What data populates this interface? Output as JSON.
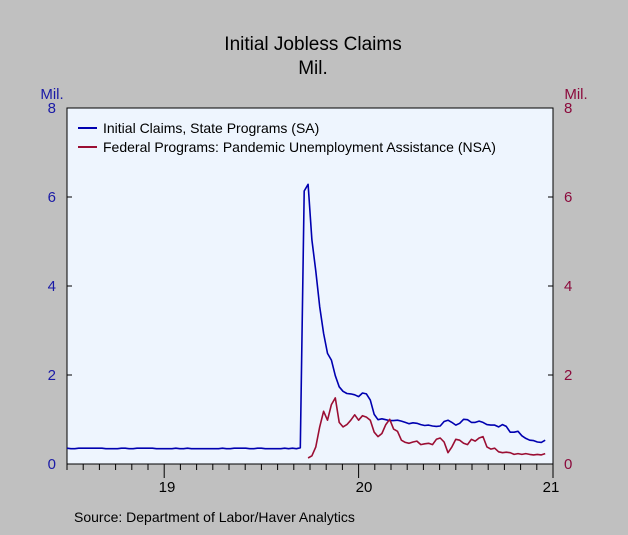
{
  "chart_data": {
    "type": "line",
    "title": "Initial Jobless Claims",
    "subtitle": "Mil.",
    "left_unit": "Mil.",
    "right_unit": "Mil.",
    "source": "Source: Department of Labor/Haver Analytics",
    "ylim": [
      0,
      8
    ],
    "y_ticks": [
      "0",
      "2",
      "4",
      "6",
      "8"
    ],
    "x_ticks": [
      "19",
      "20",
      "21"
    ],
    "x_range": [
      "2018-07",
      "2021-01"
    ],
    "grid": false,
    "legend_position": "top-left",
    "colors": {
      "plot_background": "#eef5fe",
      "page_background": "#c0c0c0",
      "left_axis": "#1a1aa6",
      "right_axis": "#8b0a3c",
      "text": "#000000"
    },
    "series": [
      {
        "name": "Initial Claims, State Programs (SA)",
        "color": "#0000b0",
        "x": [
          2018.5,
          2018.52,
          2018.54,
          2018.56,
          2018.58,
          2018.6,
          2018.62,
          2018.64,
          2018.66,
          2018.68,
          2018.7,
          2018.72,
          2018.74,
          2018.76,
          2018.78,
          2018.8,
          2018.82,
          2018.84,
          2018.86,
          2018.88,
          2018.9,
          2018.92,
          2018.94,
          2018.96,
          2018.98,
          2019.0,
          2019.02,
          2019.04,
          2019.06,
          2019.08,
          2019.1,
          2019.12,
          2019.14,
          2019.16,
          2019.18,
          2019.2,
          2019.22,
          2019.24,
          2019.26,
          2019.28,
          2019.3,
          2019.32,
          2019.34,
          2019.36,
          2019.38,
          2019.4,
          2019.42,
          2019.44,
          2019.46,
          2019.48,
          2019.5,
          2019.52,
          2019.54,
          2019.56,
          2019.58,
          2019.6,
          2019.62,
          2019.64,
          2019.66,
          2019.68,
          2019.7,
          2019.72,
          2019.74,
          2019.76,
          2019.78,
          2019.8,
          2019.82,
          2019.84,
          2019.86,
          2019.88,
          2019.9,
          2019.92,
          2019.94,
          2019.96,
          2019.98,
          2020.0,
          2020.02,
          2020.04,
          2020.06,
          2020.08,
          2020.1,
          2020.12,
          2020.14,
          2020.16,
          2020.18,
          2020.2,
          2020.22,
          2020.24,
          2020.26,
          2020.28,
          2020.3,
          2020.32,
          2020.34,
          2020.36,
          2020.38,
          2020.4,
          2020.42,
          2020.44,
          2020.46,
          2020.48,
          2020.5,
          2020.52,
          2020.54,
          2020.56,
          2020.58,
          2020.6,
          2020.62,
          2020.64,
          2020.66,
          2020.68,
          2020.7,
          2020.72,
          2020.74,
          2020.76,
          2020.78,
          2020.8,
          2020.82,
          2020.84,
          2020.86,
          2020.88,
          2020.9,
          2020.92,
          2020.94,
          2020.96
        ],
        "values": [
          0.22,
          0.21,
          0.21,
          0.22,
          0.22,
          0.22,
          0.22,
          0.22,
          0.22,
          0.22,
          0.21,
          0.21,
          0.21,
          0.21,
          0.22,
          0.22,
          0.21,
          0.21,
          0.22,
          0.22,
          0.22,
          0.22,
          0.22,
          0.21,
          0.21,
          0.21,
          0.21,
          0.21,
          0.22,
          0.21,
          0.21,
          0.22,
          0.21,
          0.21,
          0.21,
          0.21,
          0.21,
          0.21,
          0.21,
          0.21,
          0.22,
          0.21,
          0.21,
          0.22,
          0.22,
          0.22,
          0.22,
          0.21,
          0.21,
          0.22,
          0.22,
          0.21,
          0.21,
          0.21,
          0.21,
          0.21,
          0.22,
          0.21,
          0.22,
          0.21,
          0.23,
          6.0,
          6.15,
          4.9,
          4.2,
          3.4,
          2.8,
          2.35,
          2.2,
          1.85,
          1.6,
          1.5,
          1.45,
          1.44,
          1.42,
          1.38,
          1.46,
          1.44,
          1.3,
          0.98,
          0.86,
          0.88,
          0.86,
          0.84,
          0.84,
          0.85,
          0.83,
          0.8,
          0.77,
          0.79,
          0.78,
          0.75,
          0.73,
          0.74,
          0.72,
          0.71,
          0.72,
          0.82,
          0.85,
          0.8,
          0.74,
          0.78,
          0.87,
          0.86,
          0.8,
          0.8,
          0.83,
          0.8,
          0.75,
          0.74,
          0.74,
          0.7,
          0.75,
          0.71,
          0.58,
          0.58,
          0.6,
          0.5,
          0.44,
          0.4,
          0.39,
          0.36,
          0.35,
          0.4
        ]
      },
      {
        "name": "Federal Programs: Pandemic Unemployment Assistance (NSA)",
        "color": "#9b0e33",
        "x": [
          2019.74,
          2019.76,
          2019.78,
          2019.8,
          2019.82,
          2019.84,
          2019.86,
          2019.88,
          2019.9,
          2019.92,
          2019.94,
          2019.96,
          2019.98,
          2020.0,
          2020.02,
          2020.04,
          2020.06,
          2020.08,
          2020.1,
          2020.12,
          2020.14,
          2020.16,
          2020.18,
          2020.2,
          2020.22,
          2020.24,
          2020.26,
          2020.28,
          2020.3,
          2020.32,
          2020.34,
          2020.36,
          2020.38,
          2020.4,
          2020.42,
          2020.44,
          2020.46,
          2020.48,
          2020.5,
          2020.52,
          2020.54,
          2020.56,
          2020.58,
          2020.6,
          2020.62,
          2020.64,
          2020.66,
          2020.68,
          2020.7,
          2020.72,
          2020.74,
          2020.76,
          2020.78,
          2020.8,
          2020.82,
          2020.84,
          2020.86,
          2020.88,
          2020.9,
          2020.92,
          2020.94,
          2020.96
        ],
        "values": [
          0.0,
          0.05,
          0.25,
          0.7,
          1.05,
          0.85,
          1.2,
          1.35,
          0.8,
          0.7,
          0.75,
          0.85,
          0.97,
          0.85,
          0.95,
          0.92,
          0.85,
          0.58,
          0.48,
          0.55,
          0.75,
          0.87,
          0.65,
          0.6,
          0.4,
          0.35,
          0.33,
          0.36,
          0.38,
          0.3,
          0.32,
          0.33,
          0.3,
          0.42,
          0.45,
          0.36,
          0.12,
          0.25,
          0.42,
          0.4,
          0.33,
          0.3,
          0.42,
          0.38,
          0.45,
          0.48,
          0.25,
          0.2,
          0.22,
          0.14,
          0.12,
          0.13,
          0.12,
          0.08,
          0.1,
          0.08,
          0.1,
          0.08,
          0.07,
          0.08,
          0.07,
          0.1
        ]
      }
    ]
  }
}
